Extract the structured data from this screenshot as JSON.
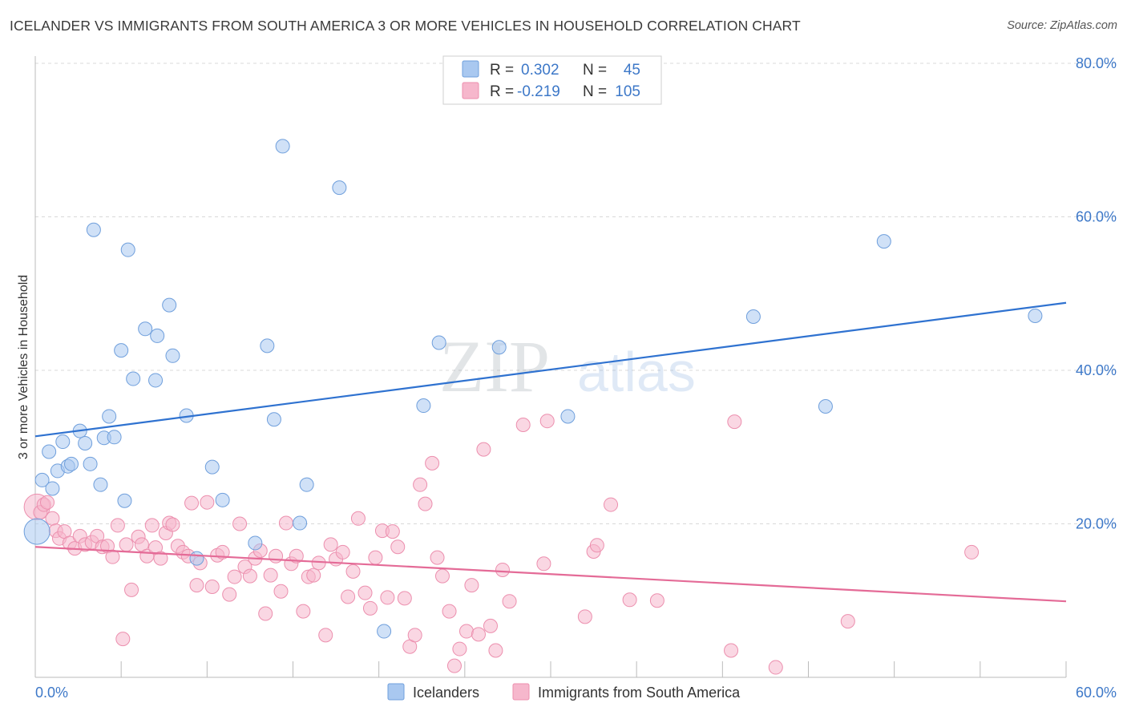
{
  "header": {
    "title": "ICELANDER VS IMMIGRANTS FROM SOUTH AMERICA 3 OR MORE VEHICLES IN HOUSEHOLD CORRELATION CHART",
    "source": "Source: ZipAtlas.com"
  },
  "watermark": {
    "big": "ZIP",
    "small": "atlas"
  },
  "stats": {
    "r_label": "R =",
    "n_label": "N =",
    "rows": [
      {
        "r": "0.302",
        "n": "45",
        "color": "#a9c8f0"
      },
      {
        "r": "-0.219",
        "n": "105",
        "color": "#f6b7cc"
      }
    ]
  },
  "legend": {
    "items": [
      {
        "label": "Icelanders",
        "color": "#a9c8f0"
      },
      {
        "label": "Immigrants from South America",
        "color": "#f6b7cc"
      }
    ]
  },
  "colors": {
    "blue_fill": "#a9c8f0",
    "blue_stroke": "#6f9fdc",
    "blue_line": "#2f72d0",
    "pink_fill": "#f6b7cc",
    "pink_stroke": "#ec8fae",
    "pink_line": "#e46b97",
    "tick_text": "#3d78c8",
    "grid": "#d8d8d8"
  },
  "chart_data": {
    "type": "scatter",
    "title": "ICELANDER VS IMMIGRANTS FROM SOUTH AMERICA 3 OR MORE VEHICLES IN HOUSEHOLD CORRELATION CHART",
    "ylabel": "3 or more Vehicles in Household",
    "xlabel": "",
    "xlim": [
      0,
      60
    ],
    "ylim": [
      0,
      80
    ],
    "x_tick_labels": [
      "0.0%",
      "60.0%"
    ],
    "y_tick_labels": [
      "20.0%",
      "40.0%",
      "60.0%",
      "80.0%"
    ],
    "y_ticks": [
      20,
      40,
      60,
      80
    ],
    "grid": true,
    "legend_position": "bottom-center",
    "series": [
      {
        "name": "Icelanders",
        "trend": {
          "x": [
            0,
            60
          ],
          "y": [
            31.4,
            48.8
          ]
        },
        "points": [
          [
            0.1,
            19.0
          ],
          [
            0.4,
            25.7
          ],
          [
            0.8,
            29.4
          ],
          [
            1.0,
            24.6
          ],
          [
            1.3,
            26.9
          ],
          [
            1.6,
            30.7
          ],
          [
            1.9,
            27.5
          ],
          [
            2.1,
            27.8
          ],
          [
            2.6,
            32.1
          ],
          [
            2.9,
            30.5
          ],
          [
            3.2,
            27.8
          ],
          [
            3.4,
            58.3
          ],
          [
            3.8,
            25.1
          ],
          [
            4.0,
            31.2
          ],
          [
            4.3,
            34.0
          ],
          [
            4.6,
            31.3
          ],
          [
            5.0,
            42.6
          ],
          [
            5.2,
            23.0
          ],
          [
            5.4,
            55.7
          ],
          [
            5.7,
            38.9
          ],
          [
            6.4,
            45.4
          ],
          [
            7.0,
            38.7
          ],
          [
            7.1,
            44.5
          ],
          [
            7.8,
            48.5
          ],
          [
            8.0,
            41.9
          ],
          [
            8.8,
            34.1
          ],
          [
            9.4,
            15.5
          ],
          [
            10.3,
            27.4
          ],
          [
            10.9,
            23.1
          ],
          [
            12.8,
            17.5
          ],
          [
            13.5,
            43.2
          ],
          [
            13.9,
            33.6
          ],
          [
            14.4,
            69.2
          ],
          [
            15.4,
            20.1
          ],
          [
            15.8,
            25.1
          ],
          [
            17.7,
            63.8
          ],
          [
            20.3,
            6.0
          ],
          [
            22.6,
            35.4
          ],
          [
            23.5,
            43.6
          ],
          [
            27.0,
            43.0
          ],
          [
            31.0,
            34.0
          ],
          [
            41.8,
            47.0
          ],
          [
            46.0,
            35.3
          ],
          [
            49.4,
            56.8
          ],
          [
            58.2,
            47.1
          ]
        ]
      },
      {
        "name": "Immigrants from South America",
        "trend": {
          "x": [
            0,
            60
          ],
          "y": [
            17.0,
            9.9
          ]
        },
        "points": [
          [
            0.1,
            22.2
          ],
          [
            0.3,
            21.5
          ],
          [
            0.5,
            22.5
          ],
          [
            0.7,
            22.8
          ],
          [
            1.0,
            20.7
          ],
          [
            1.2,
            19.1
          ],
          [
            1.4,
            18.1
          ],
          [
            1.7,
            19.0
          ],
          [
            2.0,
            17.5
          ],
          [
            2.3,
            16.8
          ],
          [
            2.6,
            18.4
          ],
          [
            2.9,
            17.3
          ],
          [
            3.3,
            17.6
          ],
          [
            3.6,
            18.4
          ],
          [
            3.9,
            17.0
          ],
          [
            4.2,
            17.1
          ],
          [
            4.5,
            15.7
          ],
          [
            4.8,
            19.8
          ],
          [
            5.1,
            5.0
          ],
          [
            5.3,
            17.3
          ],
          [
            5.6,
            11.4
          ],
          [
            6.0,
            18.3
          ],
          [
            6.2,
            17.3
          ],
          [
            6.5,
            15.8
          ],
          [
            6.8,
            19.8
          ],
          [
            7.0,
            16.9
          ],
          [
            7.3,
            15.5
          ],
          [
            7.6,
            18.8
          ],
          [
            7.8,
            20.1
          ],
          [
            8.0,
            19.9
          ],
          [
            8.3,
            17.1
          ],
          [
            8.6,
            16.3
          ],
          [
            8.9,
            15.8
          ],
          [
            9.1,
            22.7
          ],
          [
            9.4,
            12.0
          ],
          [
            9.6,
            14.9
          ],
          [
            10.0,
            22.8
          ],
          [
            10.3,
            11.8
          ],
          [
            10.6,
            15.9
          ],
          [
            10.9,
            16.3
          ],
          [
            11.3,
            10.8
          ],
          [
            11.6,
            13.1
          ],
          [
            11.9,
            20.0
          ],
          [
            12.2,
            14.4
          ],
          [
            12.5,
            13.2
          ],
          [
            12.8,
            15.5
          ],
          [
            13.1,
            16.5
          ],
          [
            13.4,
            8.3
          ],
          [
            13.7,
            13.3
          ],
          [
            14.0,
            15.8
          ],
          [
            14.3,
            11.2
          ],
          [
            14.6,
            20.1
          ],
          [
            14.9,
            14.8
          ],
          [
            15.2,
            15.8
          ],
          [
            15.6,
            8.6
          ],
          [
            15.9,
            13.1
          ],
          [
            16.2,
            13.3
          ],
          [
            16.5,
            14.9
          ],
          [
            16.9,
            5.5
          ],
          [
            17.2,
            17.3
          ],
          [
            17.5,
            15.4
          ],
          [
            17.9,
            16.3
          ],
          [
            18.2,
            10.5
          ],
          [
            18.5,
            13.8
          ],
          [
            18.8,
            20.7
          ],
          [
            19.2,
            11.0
          ],
          [
            19.5,
            9.0
          ],
          [
            19.8,
            15.6
          ],
          [
            20.2,
            19.1
          ],
          [
            20.5,
            10.4
          ],
          [
            20.8,
            19.0
          ],
          [
            21.1,
            17.0
          ],
          [
            21.5,
            10.3
          ],
          [
            21.8,
            4.0
          ],
          [
            22.1,
            5.5
          ],
          [
            22.4,
            25.1
          ],
          [
            22.7,
            22.6
          ],
          [
            23.1,
            27.9
          ],
          [
            23.4,
            15.6
          ],
          [
            23.7,
            13.2
          ],
          [
            24.1,
            8.6
          ],
          [
            24.4,
            1.5
          ],
          [
            24.7,
            3.7
          ],
          [
            25.1,
            6.0
          ],
          [
            25.4,
            12.0
          ],
          [
            25.8,
            5.6
          ],
          [
            26.1,
            29.7
          ],
          [
            26.5,
            6.7
          ],
          [
            26.8,
            3.5
          ],
          [
            27.2,
            14.0
          ],
          [
            27.6,
            9.9
          ],
          [
            28.4,
            32.9
          ],
          [
            29.6,
            14.8
          ],
          [
            29.8,
            33.4
          ],
          [
            32.0,
            7.9
          ],
          [
            32.5,
            16.4
          ],
          [
            32.7,
            17.2
          ],
          [
            33.5,
            22.5
          ],
          [
            34.6,
            10.1
          ],
          [
            36.2,
            10.0
          ],
          [
            40.5,
            3.5
          ],
          [
            40.7,
            33.3
          ],
          [
            43.1,
            1.3
          ],
          [
            47.3,
            7.3
          ],
          [
            54.5,
            16.3
          ]
        ]
      }
    ]
  }
}
